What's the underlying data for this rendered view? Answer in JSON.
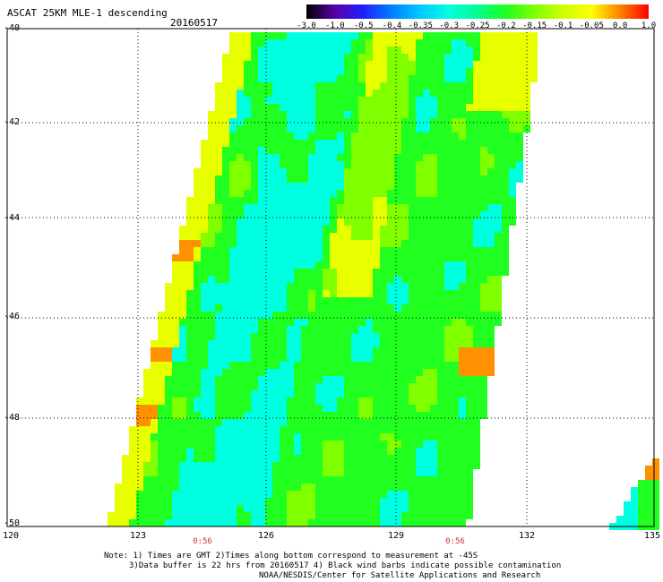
{
  "header": {
    "title": "ASCAT 25KM MLE-1 descending",
    "date": "20160517"
  },
  "colorbar": {
    "labels": [
      "-3.0",
      "-1.0",
      "-0.5",
      "-0.4",
      "-0.35",
      "-0.3",
      "-0.25",
      "-0.2",
      "-0.15",
      "-0.1",
      "-0.05",
      "0.0",
      "1.0"
    ],
    "colors": [
      "#000000",
      "#5a00a8",
      "#2020ff",
      "#0080ff",
      "#00c8ff",
      "#00ffe0",
      "#00ff90",
      "#20ff20",
      "#80ff00",
      "#d0ff00",
      "#ffff00",
      "#ff8000",
      "#ff0000"
    ]
  },
  "axes": {
    "lat_labels": [
      "-40",
      "-42",
      "-44",
      "-46",
      "-48",
      "-50"
    ],
    "lon_labels": [
      "120",
      "123",
      "126",
      "129",
      "132",
      "135"
    ],
    "time_labels": [
      "0:56",
      "0:56"
    ]
  },
  "notes": {
    "line1": "Note: 1) Times are GMT 2)Times along bottom correspond to measurement at -45S",
    "line2": "3)Data buffer is 22 hrs from 20160517 4) Black wind barbs indicate possible contamination",
    "line3": "NOAA/NESDIS/Center for Satellite Applications and Research"
  },
  "map": {
    "region": "lat -40 to -50, lon 120 to 135",
    "palette": {
      "cyan": "#00ffe0",
      "green": "#20ff20",
      "lime": "#80ff00",
      "yellow": "#e8ff00",
      "orange": "#ff9000"
    }
  }
}
